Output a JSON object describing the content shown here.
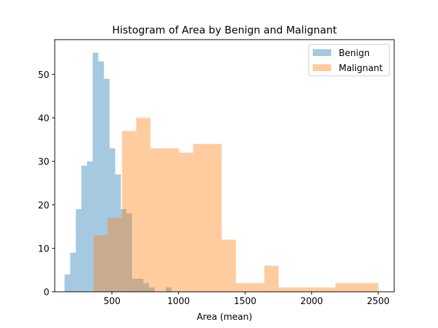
{
  "chart_data": {
    "type": "histogram",
    "title": "Histogram of Area by Benign and Malignant",
    "xlabel": "Area (mean)",
    "ylabel": "",
    "xlim": [
      70,
      2620
    ],
    "ylim": [
      0,
      58
    ],
    "xticks": [
      500,
      1000,
      1500,
      2000,
      2500
    ],
    "yticks": [
      0,
      10,
      20,
      30,
      40,
      50
    ],
    "grid": false,
    "legend_position": "top-right",
    "series": [
      {
        "name": "Benign",
        "color": "#1f77b4",
        "alpha": 0.4,
        "bin_edges": [
          143.5,
          185.8,
          228.1,
          270.3,
          312.6,
          354.9,
          397.2,
          439.5,
          481.8,
          524.1,
          566.4,
          608.7,
          650.9,
          693.2,
          735.5,
          777.8,
          820.1,
          862.4,
          904.7,
          947.0,
          989.2,
          992.0
        ],
        "counts": [
          4,
          9,
          19,
          29,
          30,
          55,
          53,
          49,
          33,
          27,
          19,
          18,
          3,
          3,
          2,
          1,
          0,
          0,
          1,
          0,
          0
        ]
      },
      {
        "name": "Malignant",
        "color": "#ff7f0e",
        "alpha": 0.4,
        "bin_edges": [
          361.6,
          468.5,
          575.4,
          682.3,
          789.2,
          896.1,
          1003.0,
          1109.9,
          1216.8,
          1323.7,
          1430.6,
          1537.5,
          1644.4,
          1751.3,
          1858.2,
          1965.1,
          2072.0,
          2178.9,
          2285.8,
          2392.7,
          2501.0
        ],
        "counts": [
          13,
          17,
          37,
          40,
          33,
          33,
          32,
          34,
          34,
          12,
          2,
          2,
          6,
          1,
          1,
          1,
          1,
          2,
          2,
          2
        ]
      }
    ]
  }
}
